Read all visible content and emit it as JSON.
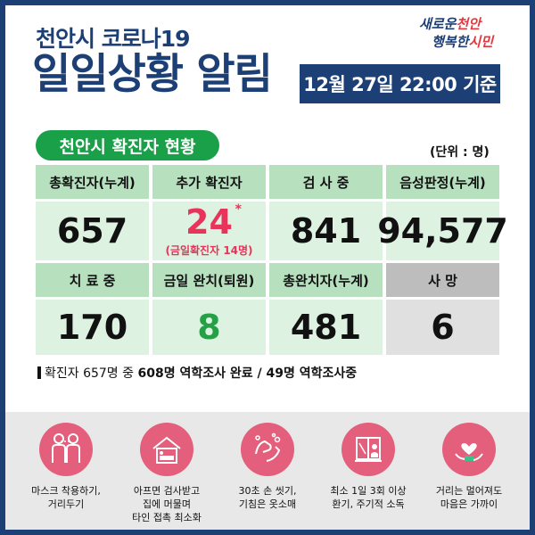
{
  "header": {
    "subtitle": "천안시 코로나19",
    "title": "일일상황 알림",
    "date": "12월 27일 22:00 기준"
  },
  "logo": {
    "line1_a": "새로운",
    "line1_b": "천안",
    "line2_a": "행복한",
    "line2_b": "시민"
  },
  "section": {
    "title": "천안시 확진자 현황",
    "unit": "(단위 : 명)"
  },
  "stats": {
    "total_label": "총확진자(누계)",
    "total_value": "657",
    "new_label": "추가 확진자",
    "new_value": "24",
    "new_mark": "*",
    "new_sub": "(금일확진자 14명)",
    "testing_label": "검 사 중",
    "testing_value": "841",
    "negative_label": "음성판정(누계)",
    "negative_value": "94,577",
    "treating_label": "치 료 중",
    "treating_value": "170",
    "recovered_today_label": "금일 완치(퇴원)",
    "recovered_today_value": "8",
    "recovered_total_label": "총완치자(누계)",
    "recovered_total_value": "481",
    "death_label": "사 망",
    "death_value": "6"
  },
  "note": {
    "prefix": "확진자 657명 중",
    "bold": "608명 역학조사 완료 / 49명 역학조사중"
  },
  "tips": [
    {
      "icon": "mask-people-icon",
      "line1": "마스크 착용하기,",
      "line2": "거리두기",
      "line3": ""
    },
    {
      "icon": "home-stay-icon",
      "line1": "아프면 검사받고",
      "line2": "집에 머물며",
      "line3": "타인 접촉 최소화"
    },
    {
      "icon": "handwash-icon",
      "line1": "30초 손 씻기,",
      "line2": "기침은 옷소매",
      "line3": ""
    },
    {
      "icon": "window-ventilation-icon",
      "line1": "최소 1일 3회 이상",
      "line2": "환기, 주기적 소독",
      "line3": ""
    },
    {
      "icon": "heart-hands-icon",
      "line1": "거리는 멀어져도",
      "line2": "마음은 가까이",
      "line3": ""
    }
  ],
  "colors": {
    "navy": "#1c3f75",
    "green": "#1ba04a",
    "pink": "#e45f7c",
    "red": "#e8345a"
  }
}
